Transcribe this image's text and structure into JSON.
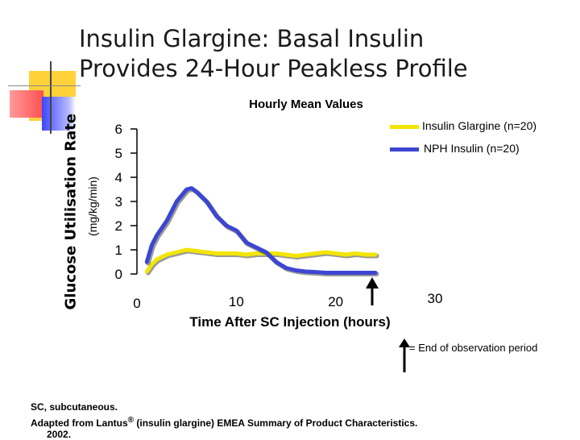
{
  "slide": {
    "title_line1": "Insulin Glargine: Basal Insulin",
    "title_line2": "Provides 24-Hour Peakless Profile",
    "colors": {
      "deco_yellow": "#ffd23a",
      "deco_red": "#ff5a5a",
      "deco_blue": "#5a66ff"
    }
  },
  "notes": {
    "end_marker_text": "= End of observation period",
    "footnote1": "SC, subcutaneous.",
    "footnote2_pre": "Adapted from Lantus",
    "footnote2_reg": "®",
    "footnote2_post": " (insulin glargine) EMEA Summary of Product Characteristics.",
    "footnote3": "2002."
  },
  "chart_data": {
    "type": "line",
    "title": "Hourly Mean Values",
    "ylabel": "Glucose Utilisation Rate",
    "ylabel_unit": "(mg/kg/min)",
    "xlabel": "Time After SC Injection (hours)",
    "xlim": [
      0,
      30
    ],
    "ylim": [
      0,
      6
    ],
    "x_ticks": [
      0,
      10,
      20,
      30
    ],
    "y_ticks": [
      0,
      1,
      2,
      3,
      4,
      5,
      6
    ],
    "grid": false,
    "legend_position": "top-right",
    "end_of_observation_x": 24,
    "series": [
      {
        "name": "Insulin Glargine (n=20)",
        "color": "#f2e600",
        "x": [
          1,
          1.5,
          2,
          3,
          4,
          5,
          6,
          7,
          8,
          9,
          10,
          11,
          12,
          13,
          14,
          15,
          16,
          17,
          18,
          19,
          20,
          21,
          22,
          23,
          24
        ],
        "y": [
          0.1,
          0.4,
          0.6,
          0.8,
          0.9,
          1.0,
          0.95,
          0.9,
          0.85,
          0.85,
          0.85,
          0.8,
          0.85,
          0.85,
          0.85,
          0.8,
          0.75,
          0.8,
          0.85,
          0.9,
          0.85,
          0.8,
          0.85,
          0.8,
          0.8
        ]
      },
      {
        "name": "NPH Insulin (n=20)",
        "color": "#3c46d2",
        "x": [
          1,
          1.5,
          2,
          3,
          4,
          5,
          5.5,
          6,
          7,
          8,
          9,
          10,
          11,
          12,
          13,
          14,
          15,
          16,
          17,
          18,
          19,
          20,
          21,
          22,
          23,
          24
        ],
        "y": [
          0.5,
          1.2,
          1.6,
          2.2,
          3.0,
          3.5,
          3.55,
          3.4,
          3.0,
          2.4,
          2.0,
          1.8,
          1.3,
          1.1,
          0.9,
          0.5,
          0.25,
          0.15,
          0.1,
          0.08,
          0.05,
          0.05,
          0.05,
          0.05,
          0.05,
          0.05
        ]
      }
    ]
  }
}
